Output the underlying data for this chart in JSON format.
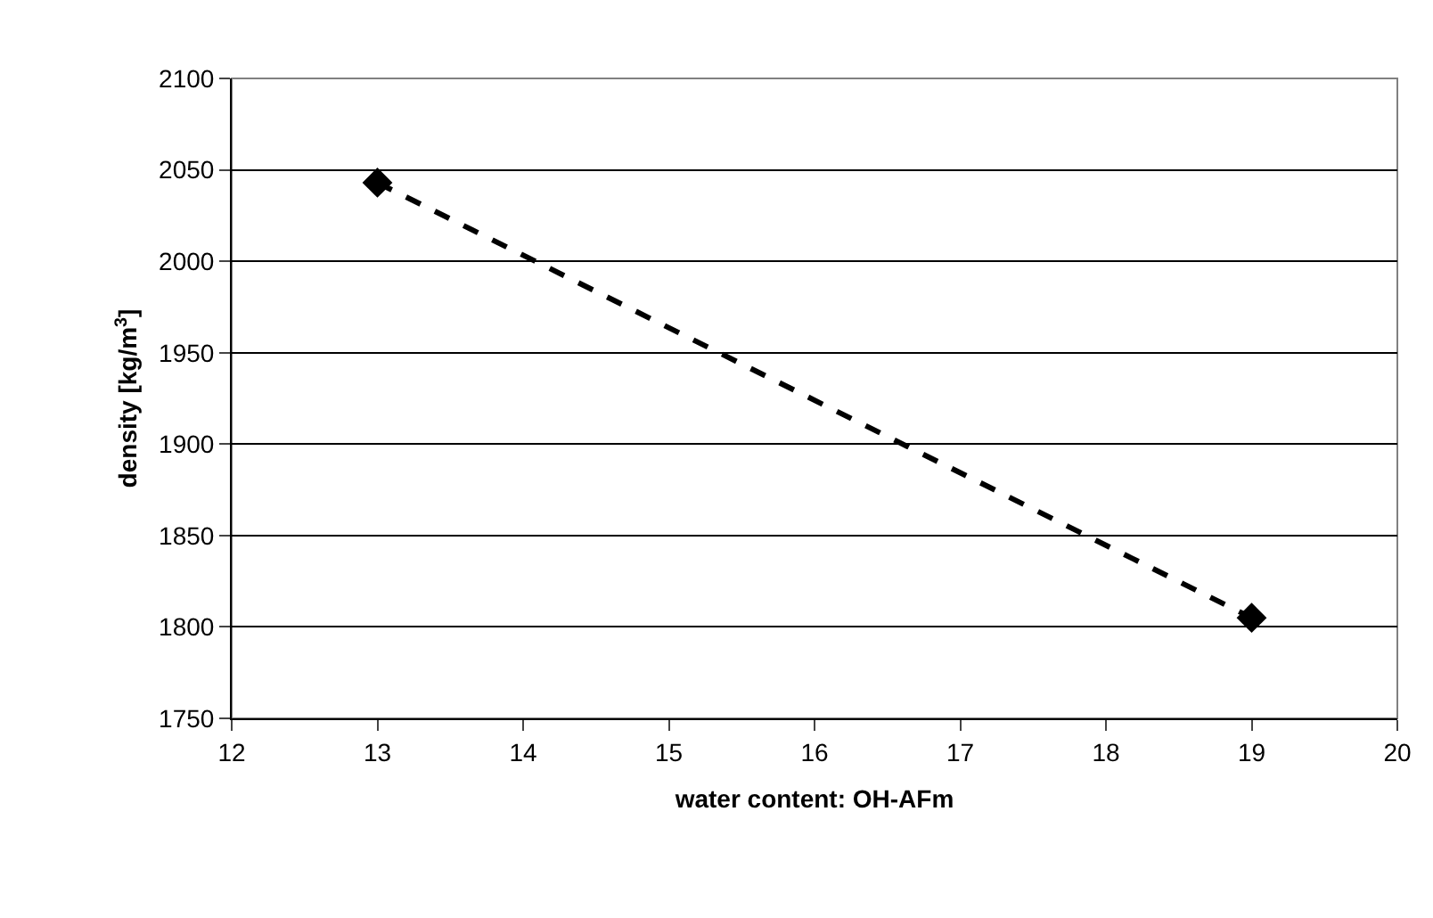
{
  "chart_data": {
    "type": "line",
    "xlabel": "water content: OH-AFm",
    "ylabel": "density [kg/m$^{3}$]",
    "x": [
      13,
      19
    ],
    "series": [
      {
        "color": "#000000",
        "values": [
          2043,
          1805
        ]
      }
    ],
    "xlim": [
      12,
      20
    ],
    "xticks": [
      12,
      13,
      14,
      15,
      16,
      17,
      18,
      19,
      20
    ],
    "ylim": [
      1750,
      2100
    ],
    "yticks": [
      1750,
      1800,
      1850,
      1900,
      1950,
      2000,
      2050,
      2100
    ],
    "grid": "y",
    "legend": false,
    "marker": "diamond",
    "line_style": "dashed"
  }
}
